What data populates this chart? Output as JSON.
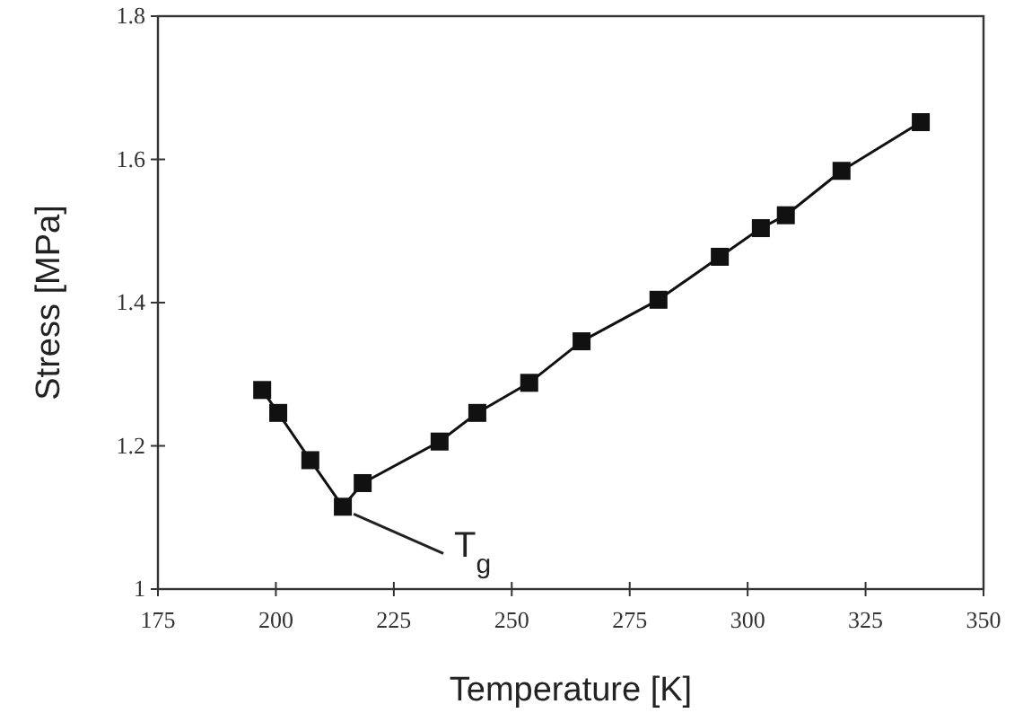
{
  "chart_data": {
    "type": "line",
    "xlabel": "Temperature  [K]",
    "ylabel": "Stress [MPa]",
    "x": [
      197.1,
      200.5,
      207.3,
      214.2,
      218.4,
      234.7,
      242.7,
      253.7,
      264.8,
      281.1,
      294.1,
      302.8,
      308.1,
      319.9,
      336.7
    ],
    "series": [
      {
        "color": "#111111",
        "values": [
          1.278,
          1.246,
          1.18,
          1.115,
          1.148,
          1.206,
          1.246,
          1.288,
          1.346,
          1.404,
          1.464,
          1.504,
          1.522,
          1.584,
          1.652
        ]
      }
    ],
    "xlim": [
      175,
      350
    ],
    "xticks": [
      175,
      200,
      225,
      250,
      275,
      300,
      325,
      350
    ],
    "ylim": [
      1,
      1.8
    ],
    "yticks": [
      {
        "value": 1,
        "label": "1"
      },
      1.2,
      1.4,
      1.6,
      1.8
    ],
    "marker": "square",
    "line_style": "solid",
    "grid": false,
    "annotations": [
      {
        "text": "T$_{g}$",
        "x": 214.2,
        "y": 1.115
      }
    ]
  }
}
